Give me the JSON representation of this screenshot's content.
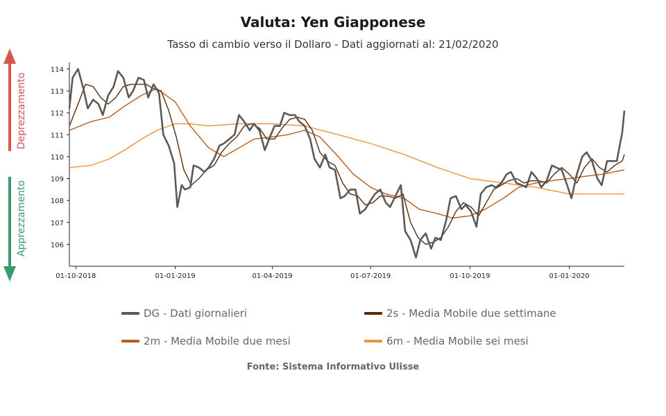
{
  "title": "Valuta: Yen Giapponese",
  "subtitle": "Tasso di cambio verso il Dollaro - Dati aggiornati al: 21/02/2020",
  "side_labels": {
    "up": "Deprezzamento",
    "down": "Apprezzamento"
  },
  "source": "Fonte: Sistema Informativo Ulisse",
  "colors": {
    "daily": "#595959",
    "ma2w": "#5c2a08",
    "ma2m": "#b85a1a",
    "ma6m": "#f39040",
    "up_arrow": "#d9534f",
    "down_arrow": "#3a9a6a",
    "axis": "#222222"
  },
  "chart_data": {
    "type": "line",
    "x_ticks": [
      "01-10-2018",
      "01-01-2019",
      "01-04-2019",
      "01-07-2019",
      "01-10-2019",
      "01-01-2020"
    ],
    "y_ticks": [
      106,
      107,
      108,
      109,
      110,
      111,
      112,
      113,
      114
    ],
    "xlim": [
      "2018-09-25",
      "2020-02-21"
    ],
    "ylim": [
      105.0,
      114.3
    ],
    "series": [
      {
        "key": "daily",
        "name": "DG - Dati giornalieri",
        "points": [
          [
            "2018-09-25",
            112.2
          ],
          [
            "2018-09-28",
            113.6
          ],
          [
            "2018-10-03",
            114.0
          ],
          [
            "2018-10-08",
            113.1
          ],
          [
            "2018-10-12",
            112.2
          ],
          [
            "2018-10-17",
            112.6
          ],
          [
            "2018-10-22",
            112.4
          ],
          [
            "2018-10-26",
            111.9
          ],
          [
            "2018-10-31",
            112.8
          ],
          [
            "2018-11-05",
            113.2
          ],
          [
            "2018-11-09",
            113.9
          ],
          [
            "2018-11-14",
            113.6
          ],
          [
            "2018-11-19",
            112.7
          ],
          [
            "2018-11-23",
            113.0
          ],
          [
            "2018-11-28",
            113.6
          ],
          [
            "2018-12-03",
            113.5
          ],
          [
            "2018-12-07",
            112.7
          ],
          [
            "2018-12-12",
            113.3
          ],
          [
            "2018-12-17",
            112.9
          ],
          [
            "2018-12-21",
            111.0
          ],
          [
            "2018-12-26",
            110.5
          ],
          [
            "2018-12-31",
            109.7
          ],
          [
            "2019-01-03",
            107.7
          ],
          [
            "2019-01-07",
            108.7
          ],
          [
            "2019-01-10",
            108.5
          ],
          [
            "2019-01-15",
            108.6
          ],
          [
            "2019-01-18",
            109.6
          ],
          [
            "2019-01-23",
            109.5
          ],
          [
            "2019-01-28",
            109.3
          ],
          [
            "2019-02-01",
            109.5
          ],
          [
            "2019-02-06",
            109.9
          ],
          [
            "2019-02-11",
            110.5
          ],
          [
            "2019-02-15",
            110.6
          ],
          [
            "2019-02-20",
            110.8
          ],
          [
            "2019-02-25",
            111.0
          ],
          [
            "2019-03-01",
            111.9
          ],
          [
            "2019-03-06",
            111.6
          ],
          [
            "2019-03-11",
            111.2
          ],
          [
            "2019-03-15",
            111.5
          ],
          [
            "2019-03-20",
            111.2
          ],
          [
            "2019-03-25",
            110.3
          ],
          [
            "2019-03-29",
            110.8
          ],
          [
            "2019-04-03",
            111.4
          ],
          [
            "2019-04-08",
            111.4
          ],
          [
            "2019-04-12",
            112.0
          ],
          [
            "2019-04-17",
            111.9
          ],
          [
            "2019-04-22",
            111.9
          ],
          [
            "2019-04-26",
            111.6
          ],
          [
            "2019-05-01",
            111.4
          ],
          [
            "2019-05-06",
            110.8
          ],
          [
            "2019-05-10",
            109.9
          ],
          [
            "2019-05-15",
            109.5
          ],
          [
            "2019-05-20",
            110.1
          ],
          [
            "2019-05-24",
            109.5
          ],
          [
            "2019-05-29",
            109.4
          ],
          [
            "2019-06-03",
            108.1
          ],
          [
            "2019-06-07",
            108.2
          ],
          [
            "2019-06-12",
            108.5
          ],
          [
            "2019-06-17",
            108.5
          ],
          [
            "2019-06-21",
            107.4
          ],
          [
            "2019-06-26",
            107.6
          ],
          [
            "2019-07-01",
            108.0
          ],
          [
            "2019-07-05",
            108.3
          ],
          [
            "2019-07-10",
            108.5
          ],
          [
            "2019-07-15",
            107.9
          ],
          [
            "2019-07-19",
            107.7
          ],
          [
            "2019-07-24",
            108.2
          ],
          [
            "2019-07-29",
            108.7
          ],
          [
            "2019-08-02",
            106.6
          ],
          [
            "2019-08-07",
            106.2
          ],
          [
            "2019-08-12",
            105.4
          ],
          [
            "2019-08-16",
            106.2
          ],
          [
            "2019-08-21",
            106.5
          ],
          [
            "2019-08-26",
            105.8
          ],
          [
            "2019-08-30",
            106.3
          ],
          [
            "2019-09-04",
            106.2
          ],
          [
            "2019-09-09",
            107.1
          ],
          [
            "2019-09-13",
            108.1
          ],
          [
            "2019-09-18",
            108.2
          ],
          [
            "2019-09-23",
            107.6
          ],
          [
            "2019-09-27",
            107.8
          ],
          [
            "2019-10-02",
            107.5
          ],
          [
            "2019-10-07",
            106.8
          ],
          [
            "2019-10-11",
            108.3
          ],
          [
            "2019-10-16",
            108.6
          ],
          [
            "2019-10-21",
            108.7
          ],
          [
            "2019-10-25",
            108.6
          ],
          [
            "2019-10-30",
            108.8
          ],
          [
            "2019-11-04",
            109.2
          ],
          [
            "2019-11-08",
            109.3
          ],
          [
            "2019-11-13",
            108.8
          ],
          [
            "2019-11-18",
            108.7
          ],
          [
            "2019-11-22",
            108.6
          ],
          [
            "2019-11-27",
            109.3
          ],
          [
            "2019-12-02",
            109.0
          ],
          [
            "2019-12-06",
            108.6
          ],
          [
            "2019-12-11",
            108.9
          ],
          [
            "2019-12-16",
            109.6
          ],
          [
            "2019-12-20",
            109.5
          ],
          [
            "2019-12-25",
            109.4
          ],
          [
            "2019-12-30",
            108.7
          ],
          [
            "2020-01-03",
            108.1
          ],
          [
            "2020-01-08",
            109.2
          ],
          [
            "2020-01-13",
            110.0
          ],
          [
            "2020-01-17",
            110.2
          ],
          [
            "2020-01-22",
            109.8
          ],
          [
            "2020-01-27",
            109.0
          ],
          [
            "2020-01-31",
            108.7
          ],
          [
            "2020-02-05",
            109.8
          ],
          [
            "2020-02-10",
            109.8
          ],
          [
            "2020-02-14",
            109.8
          ],
          [
            "2020-02-19",
            111.1
          ],
          [
            "2020-02-21",
            112.1
          ]
        ]
      },
      {
        "key": "ma2w",
        "name": "2s - Media Mobile due settimane",
        "points": [
          [
            "2018-09-25",
            111.4
          ],
          [
            "2018-10-03",
            112.4
          ],
          [
            "2018-10-10",
            113.3
          ],
          [
            "2018-10-17",
            113.2
          ],
          [
            "2018-10-24",
            112.7
          ],
          [
            "2018-10-31",
            112.4
          ],
          [
            "2018-11-07",
            112.7
          ],
          [
            "2018-11-14",
            113.2
          ],
          [
            "2018-11-21",
            113.3
          ],
          [
            "2018-11-28",
            113.3
          ],
          [
            "2018-12-05",
            113.3
          ],
          [
            "2018-12-12",
            113.1
          ],
          [
            "2018-12-19",
            113.0
          ],
          [
            "2018-12-26",
            112.1
          ],
          [
            "2019-01-02",
            110.9
          ],
          [
            "2019-01-09",
            109.4
          ],
          [
            "2019-01-16",
            108.7
          ],
          [
            "2019-01-23",
            109.0
          ],
          [
            "2019-01-30",
            109.4
          ],
          [
            "2019-02-06",
            109.6
          ],
          [
            "2019-02-13",
            110.2
          ],
          [
            "2019-02-20",
            110.6
          ],
          [
            "2019-02-27",
            110.9
          ],
          [
            "2019-03-06",
            111.4
          ],
          [
            "2019-03-13",
            111.5
          ],
          [
            "2019-03-20",
            111.3
          ],
          [
            "2019-03-27",
            110.8
          ],
          [
            "2019-04-03",
            110.8
          ],
          [
            "2019-04-10",
            111.3
          ],
          [
            "2019-04-17",
            111.7
          ],
          [
            "2019-04-24",
            111.8
          ],
          [
            "2019-05-01",
            111.7
          ],
          [
            "2019-05-08",
            111.2
          ],
          [
            "2019-05-15",
            110.2
          ],
          [
            "2019-05-22",
            109.8
          ],
          [
            "2019-05-29",
            109.6
          ],
          [
            "2019-06-05",
            108.8
          ],
          [
            "2019-06-12",
            108.3
          ],
          [
            "2019-06-19",
            108.2
          ],
          [
            "2019-06-26",
            107.8
          ],
          [
            "2019-07-03",
            107.9
          ],
          [
            "2019-07-10",
            108.2
          ],
          [
            "2019-07-17",
            108.2
          ],
          [
            "2019-07-24",
            108.1
          ],
          [
            "2019-07-31",
            108.3
          ],
          [
            "2019-08-07",
            107.0
          ],
          [
            "2019-08-14",
            106.3
          ],
          [
            "2019-08-21",
            106.0
          ],
          [
            "2019-08-28",
            106.1
          ],
          [
            "2019-09-04",
            106.3
          ],
          [
            "2019-09-11",
            106.8
          ],
          [
            "2019-09-18",
            107.5
          ],
          [
            "2019-09-25",
            107.9
          ],
          [
            "2019-10-02",
            107.7
          ],
          [
            "2019-10-09",
            107.3
          ],
          [
            "2019-10-16",
            107.9
          ],
          [
            "2019-10-23",
            108.5
          ],
          [
            "2019-10-30",
            108.7
          ],
          [
            "2019-11-06",
            108.9
          ],
          [
            "2019-11-13",
            109.0
          ],
          [
            "2019-11-20",
            108.8
          ],
          [
            "2019-11-27",
            108.9
          ],
          [
            "2019-12-04",
            108.9
          ],
          [
            "2019-12-11",
            108.8
          ],
          [
            "2019-12-18",
            109.2
          ],
          [
            "2019-12-25",
            109.5
          ],
          [
            "2020-01-01",
            109.2
          ],
          [
            "2020-01-08",
            108.8
          ],
          [
            "2020-01-15",
            109.5
          ],
          [
            "2020-01-22",
            109.9
          ],
          [
            "2020-01-29",
            109.5
          ],
          [
            "2020-02-05",
            109.3
          ],
          [
            "2020-02-12",
            109.6
          ],
          [
            "2020-02-19",
            109.8
          ],
          [
            "2020-02-21",
            110.1
          ]
        ]
      },
      {
        "key": "ma2m",
        "name": "2m - Media Mobile due mesi",
        "points": [
          [
            "2018-09-25",
            111.2
          ],
          [
            "2018-10-15",
            111.6
          ],
          [
            "2018-11-01",
            111.8
          ],
          [
            "2018-11-15",
            112.3
          ],
          [
            "2018-12-01",
            112.8
          ],
          [
            "2018-12-15",
            113.1
          ],
          [
            "2019-01-01",
            112.5
          ],
          [
            "2019-01-15",
            111.4
          ],
          [
            "2019-02-01",
            110.4
          ],
          [
            "2019-02-15",
            110.0
          ],
          [
            "2019-03-01",
            110.4
          ],
          [
            "2019-03-15",
            110.8
          ],
          [
            "2019-04-01",
            110.9
          ],
          [
            "2019-04-15",
            111.0
          ],
          [
            "2019-05-01",
            111.2
          ],
          [
            "2019-05-15",
            110.9
          ],
          [
            "2019-06-01",
            110.0
          ],
          [
            "2019-06-15",
            109.2
          ],
          [
            "2019-07-01",
            108.6
          ],
          [
            "2019-07-15",
            108.3
          ],
          [
            "2019-08-01",
            108.1
          ],
          [
            "2019-08-15",
            107.6
          ],
          [
            "2019-09-01",
            107.4
          ],
          [
            "2019-09-15",
            107.2
          ],
          [
            "2019-10-01",
            107.3
          ],
          [
            "2019-10-15",
            107.6
          ],
          [
            "2019-11-01",
            108.1
          ],
          [
            "2019-11-15",
            108.6
          ],
          [
            "2019-12-01",
            108.8
          ],
          [
            "2019-12-15",
            108.9
          ],
          [
            "2020-01-01",
            109.0
          ],
          [
            "2020-01-15",
            109.1
          ],
          [
            "2020-02-01",
            109.2
          ],
          [
            "2020-02-21",
            109.4
          ]
        ]
      },
      {
        "key": "ma6m",
        "name": "6m - Media Mobile sei mesi",
        "points": [
          [
            "2018-09-25",
            109.5
          ],
          [
            "2018-10-15",
            109.6
          ],
          [
            "2018-11-01",
            109.9
          ],
          [
            "2018-11-15",
            110.3
          ],
          [
            "2018-12-01",
            110.8
          ],
          [
            "2018-12-15",
            111.2
          ],
          [
            "2019-01-01",
            111.5
          ],
          [
            "2019-01-15",
            111.5
          ],
          [
            "2019-02-01",
            111.4
          ],
          [
            "2019-03-01",
            111.5
          ],
          [
            "2019-04-01",
            111.5
          ],
          [
            "2019-05-01",
            111.4
          ],
          [
            "2019-06-01",
            111.0
          ],
          [
            "2019-07-01",
            110.6
          ],
          [
            "2019-08-01",
            110.1
          ],
          [
            "2019-09-01",
            109.5
          ],
          [
            "2019-10-01",
            109.0
          ],
          [
            "2019-11-01",
            108.8
          ],
          [
            "2019-12-01",
            108.6
          ],
          [
            "2020-01-01",
            108.3
          ],
          [
            "2020-02-01",
            108.3
          ],
          [
            "2020-02-21",
            108.3
          ]
        ]
      }
    ],
    "legend_position": "bottom",
    "grid": false
  }
}
